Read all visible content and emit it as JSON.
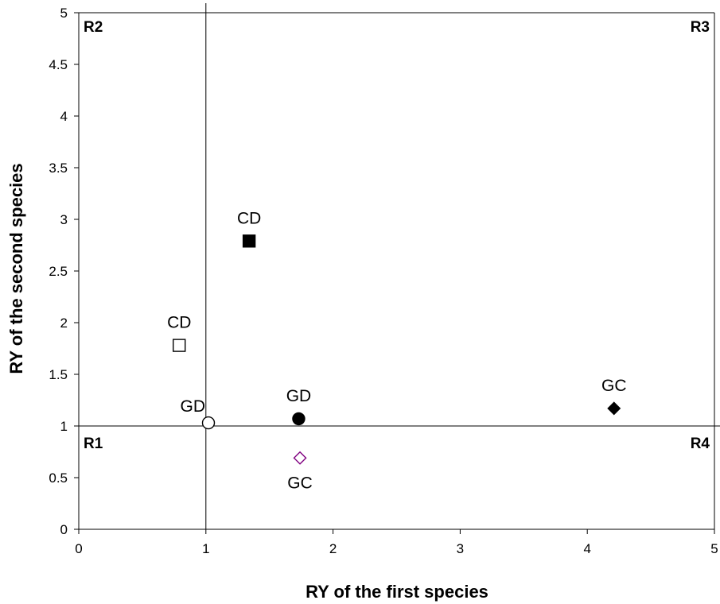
{
  "chart_data": {
    "type": "scatter",
    "title": "",
    "xlabel": "RY of the first species",
    "ylabel": "RY of the second species",
    "xlim": [
      0,
      5
    ],
    "ylim": [
      0,
      5
    ],
    "x_ticks": [
      "0",
      "1",
      "2",
      "3",
      "4",
      "5"
    ],
    "y_ticks": [
      "0",
      "0.5",
      "1",
      "1.5",
      "2",
      "2.5",
      "3",
      "3.5",
      "4",
      "4.5",
      "5"
    ],
    "grid": false,
    "reference_lines": [
      {
        "axis": "x",
        "value": 1
      },
      {
        "axis": "y",
        "value": 1
      }
    ],
    "regions": [
      {
        "label": "R1",
        "corner": "bottom-left"
      },
      {
        "label": "R2",
        "corner": "top-left"
      },
      {
        "label": "R3",
        "corner": "top-right"
      },
      {
        "label": "R4",
        "corner": "bottom-right"
      }
    ],
    "points": [
      {
        "label": "CD",
        "x": 0.79,
        "y": 1.78,
        "marker": "square",
        "filled": false,
        "color": "#000000",
        "label_pos": "above"
      },
      {
        "label": "CD",
        "x": 1.34,
        "y": 2.79,
        "marker": "square",
        "filled": true,
        "color": "#000000",
        "label_pos": "above"
      },
      {
        "label": "GD",
        "x": 1.02,
        "y": 1.03,
        "marker": "circle",
        "filled": false,
        "color": "#000000",
        "label_pos": "left"
      },
      {
        "label": "GD",
        "x": 1.73,
        "y": 1.07,
        "marker": "circle",
        "filled": true,
        "color": "#000000",
        "label_pos": "above"
      },
      {
        "label": "GC",
        "x": 4.21,
        "y": 1.17,
        "marker": "diamond",
        "filled": true,
        "color": "#000000",
        "label_pos": "above"
      },
      {
        "label": "GC",
        "x": 1.74,
        "y": 0.69,
        "marker": "diamond",
        "filled": false,
        "color": "#800080",
        "label_pos": "below"
      }
    ]
  }
}
